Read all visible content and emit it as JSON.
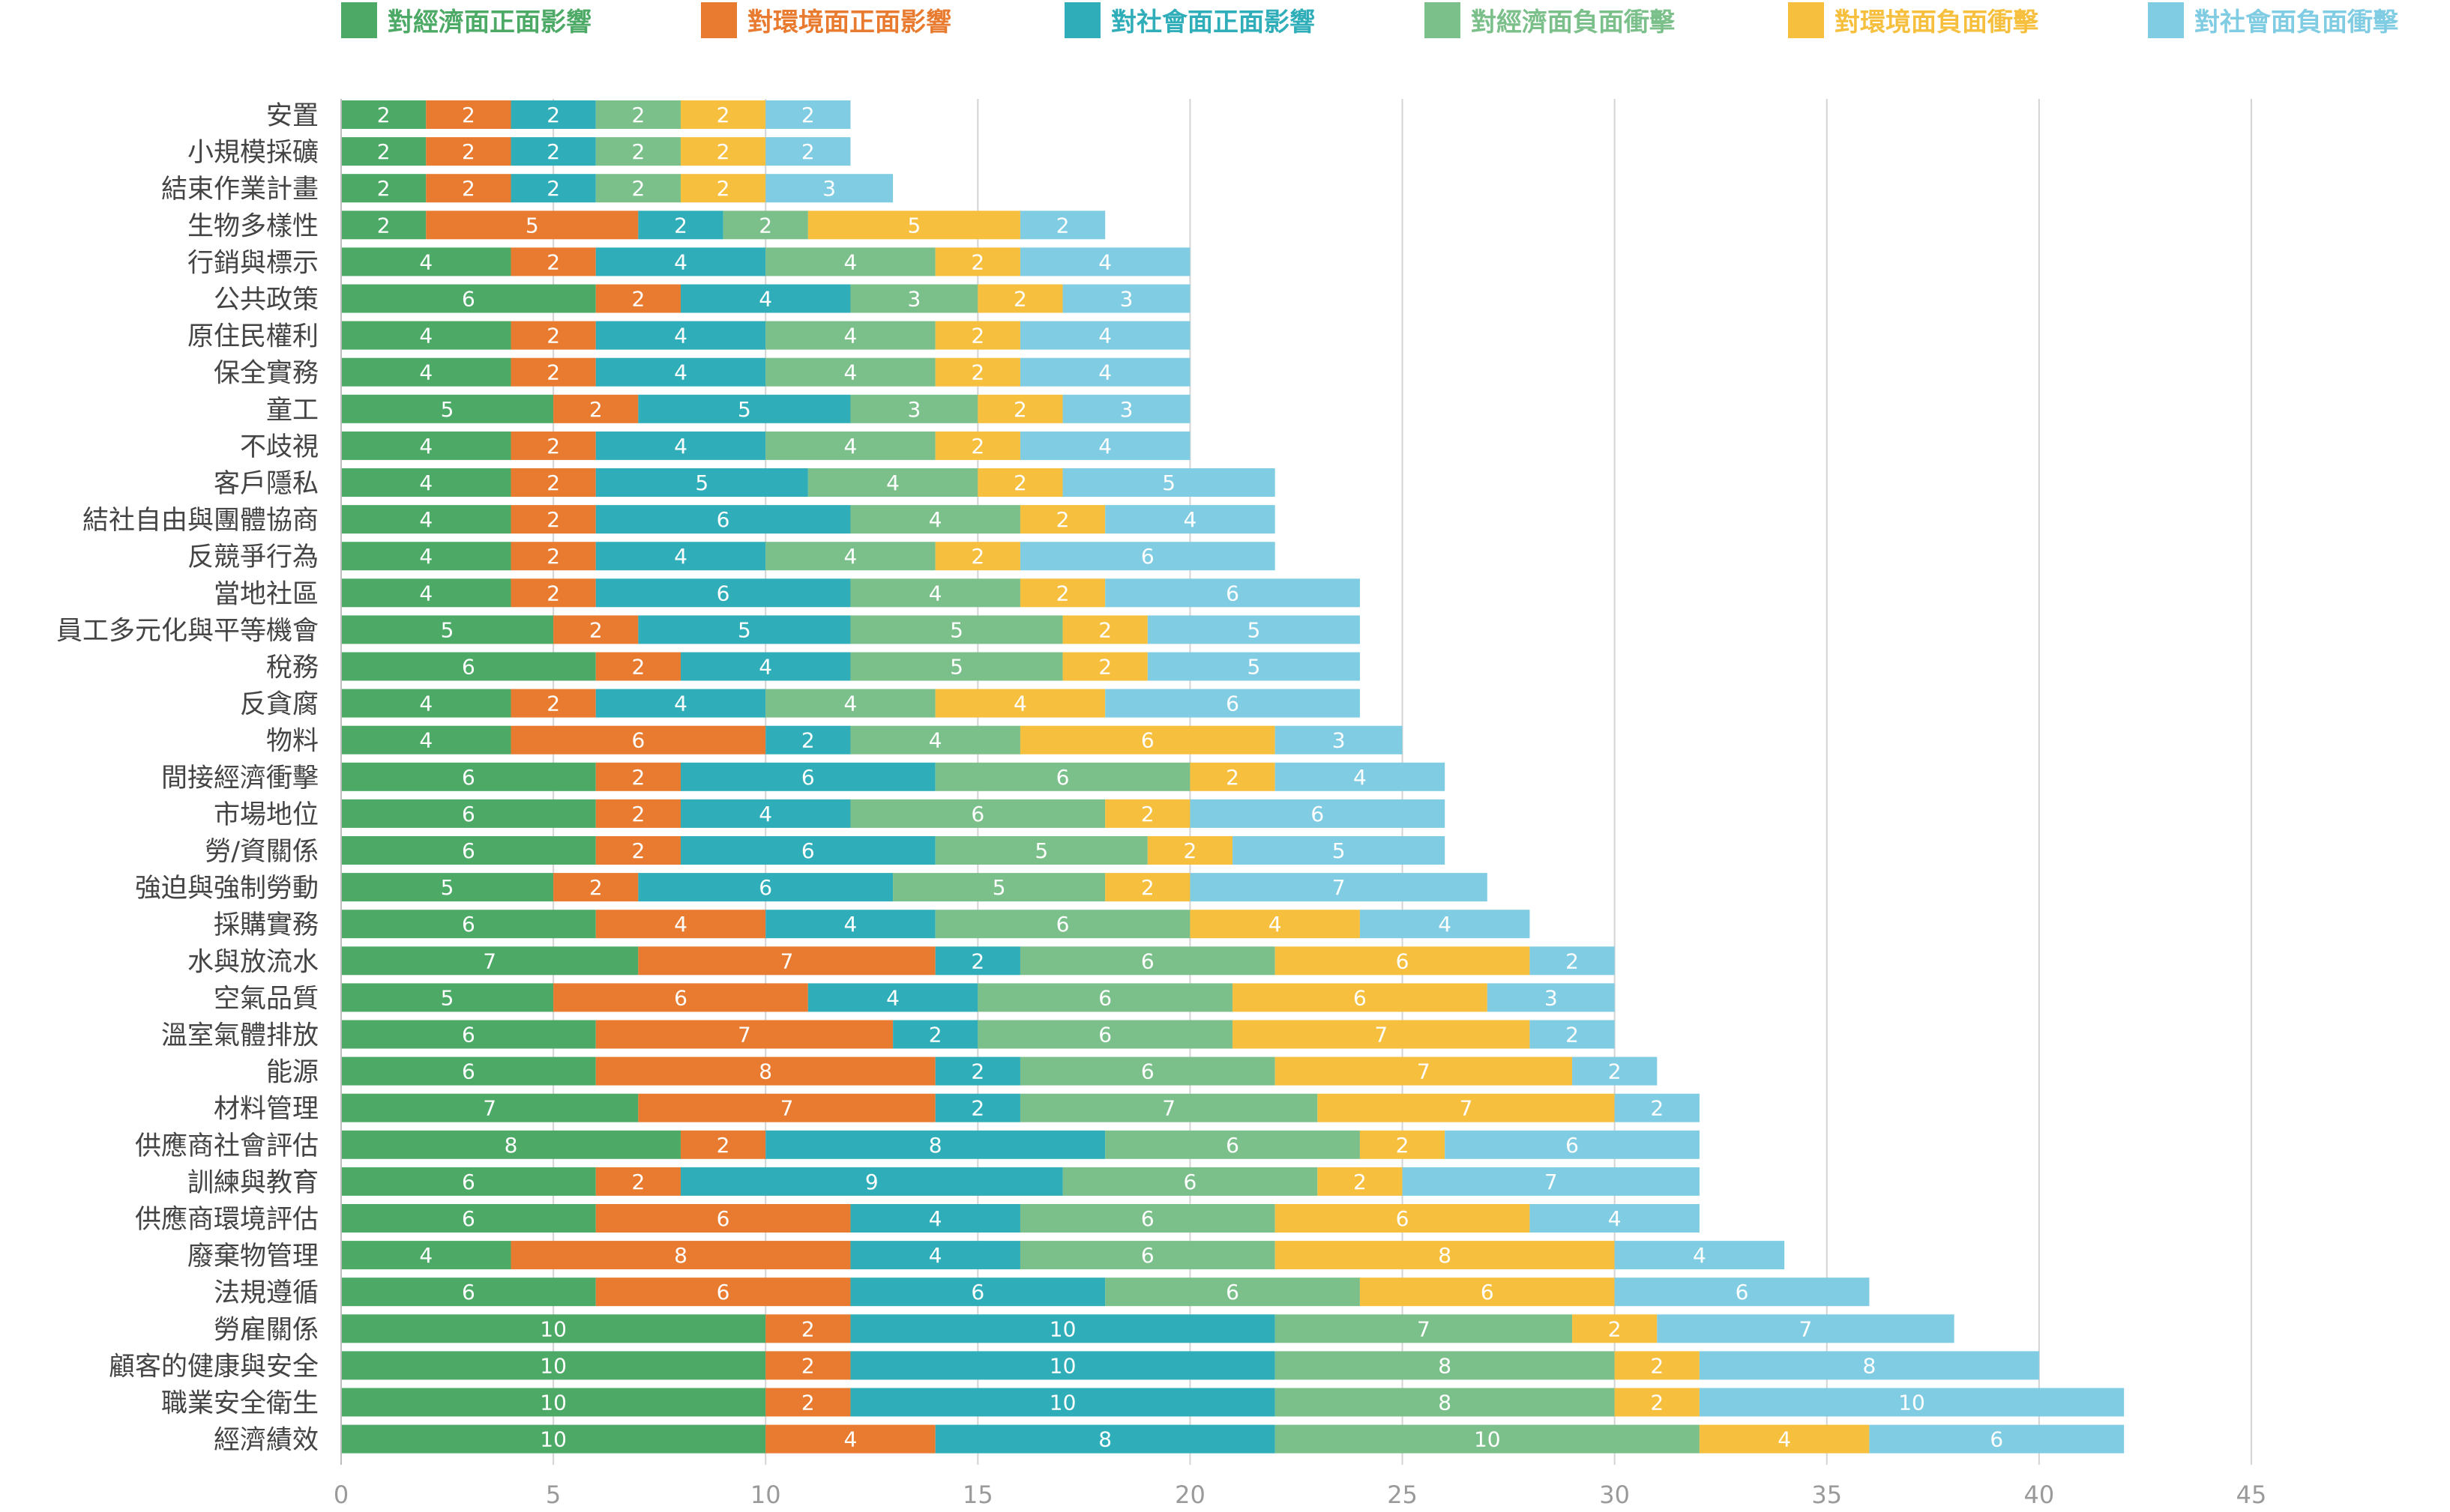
{
  "chart_data": {
    "type": "bar",
    "orientation": "horizontal",
    "stacked": true,
    "title": "",
    "xlabel": "",
    "ylabel": "",
    "xlim": [
      0,
      45
    ],
    "xticks": [
      0,
      5,
      10,
      15,
      20,
      25,
      30,
      35,
      40,
      45
    ],
    "grid": "vertical",
    "legend_position": "top",
    "data_labels": true,
    "categories": [
      "安置",
      "小規模採礦",
      "結束作業計畫",
      "生物多樣性",
      "行銷與標示",
      "公共政策",
      "原住民權利",
      "保全實務",
      "童工",
      "不歧視",
      "客戶隱私",
      "結社自由與團體協商",
      "反競爭行為",
      "當地社區",
      "員工多元化與平等機會",
      "稅務",
      "反貪腐",
      "物料",
      "間接經濟衝擊",
      "市場地位",
      "勞/資關係",
      "強迫與強制勞動",
      "採購實務",
      "水與放流水",
      "空氣品質",
      "溫室氣體排放",
      "能源",
      "材料管理",
      "供應商社會評估",
      "訓練與教育",
      "供應商環境評估",
      "廢棄物管理",
      "法規遵循",
      "勞雇關係",
      "顧客的健康與安全",
      "職業安全衛生",
      "經濟績效"
    ],
    "series": [
      {
        "name": "對經濟面正面影響",
        "color": "#4DAA66",
        "values": [
          2,
          2,
          2,
          2,
          4,
          6,
          4,
          4,
          5,
          4,
          4,
          4,
          4,
          4,
          5,
          6,
          4,
          4,
          6,
          6,
          6,
          5,
          6,
          7,
          5,
          6,
          6,
          7,
          8,
          6,
          6,
          4,
          6,
          10,
          10,
          10,
          10
        ]
      },
      {
        "name": "對環境面正面影響",
        "color": "#E87B2F",
        "values": [
          2,
          2,
          2,
          5,
          2,
          2,
          2,
          2,
          2,
          2,
          2,
          2,
          2,
          2,
          2,
          2,
          2,
          6,
          2,
          2,
          2,
          2,
          4,
          7,
          6,
          7,
          8,
          7,
          2,
          2,
          6,
          8,
          6,
          2,
          2,
          2,
          4
        ]
      },
      {
        "name": "對社會面正面影響",
        "color": "#2FAEB9",
        "values": [
          2,
          2,
          2,
          2,
          4,
          4,
          4,
          4,
          5,
          4,
          5,
          6,
          4,
          6,
          5,
          4,
          4,
          2,
          6,
          4,
          6,
          6,
          4,
          2,
          4,
          2,
          2,
          2,
          8,
          9,
          4,
          4,
          6,
          10,
          10,
          10,
          8
        ]
      },
      {
        "name": "對經濟面負面衝擊",
        "color": "#7BC08A",
        "values": [
          2,
          2,
          2,
          2,
          4,
          3,
          4,
          4,
          3,
          4,
          4,
          4,
          4,
          4,
          5,
          5,
          4,
          4,
          6,
          6,
          5,
          5,
          6,
          6,
          6,
          6,
          6,
          7,
          6,
          6,
          6,
          6,
          6,
          7,
          8,
          8,
          10
        ]
      },
      {
        "name": "對環境面負面衝擊",
        "color": "#F7BF3E",
        "values": [
          2,
          2,
          2,
          5,
          2,
          2,
          2,
          2,
          2,
          2,
          2,
          2,
          2,
          2,
          2,
          2,
          4,
          6,
          2,
          2,
          2,
          2,
          4,
          6,
          6,
          7,
          7,
          7,
          2,
          2,
          6,
          8,
          6,
          2,
          2,
          2,
          4
        ]
      },
      {
        "name": "對社會面負面衝擊",
        "color": "#7FCCE3",
        "values": [
          2,
          2,
          3,
          2,
          4,
          3,
          4,
          4,
          3,
          4,
          5,
          4,
          6,
          6,
          5,
          5,
          6,
          3,
          4,
          6,
          5,
          7,
          4,
          2,
          3,
          2,
          2,
          2,
          6,
          7,
          4,
          4,
          6,
          7,
          8,
          10,
          6
        ]
      }
    ]
  }
}
